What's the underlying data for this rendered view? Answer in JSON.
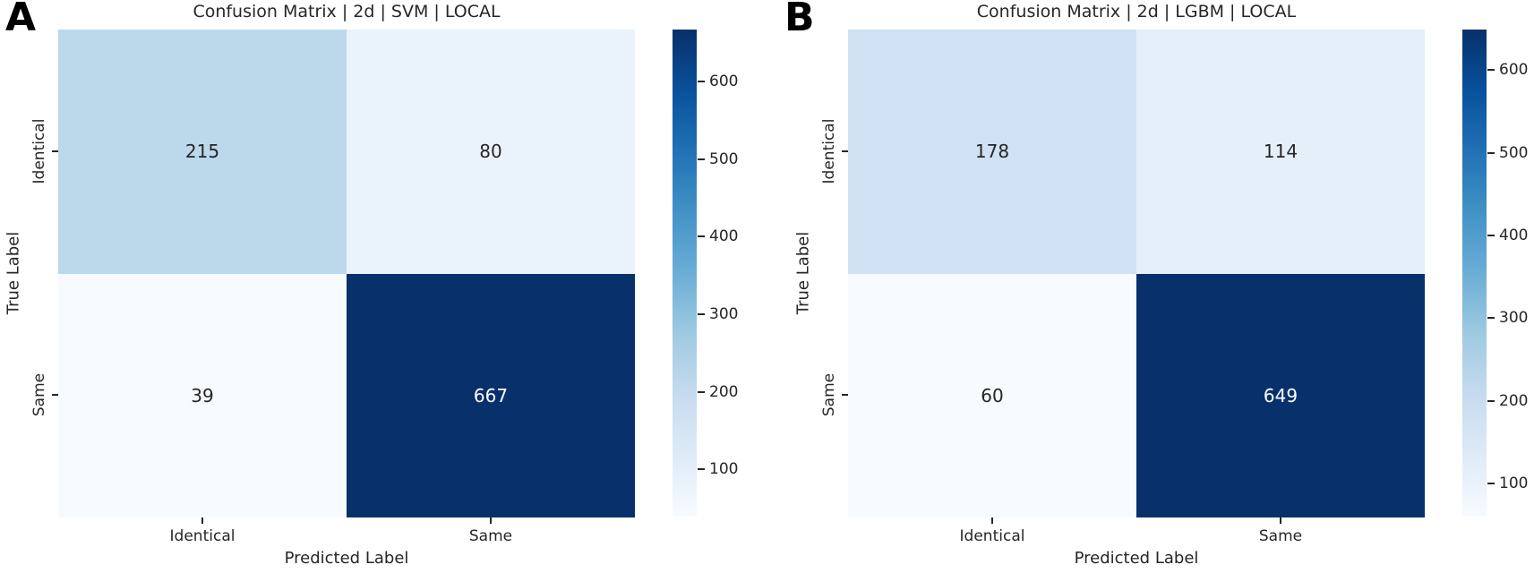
{
  "figure": {
    "background": "#ffffff",
    "text_color": "#262626"
  },
  "colormap": {
    "name": "Blues",
    "stops": [
      "#08306b",
      "#08519c",
      "#2171b5",
      "#4292c6",
      "#6baed6",
      "#9ecae1",
      "#c6dbef",
      "#deebf7",
      "#f7fbff"
    ]
  },
  "panels": [
    {
      "letter": "A",
      "title": "Confusion Matrix | 2d | SVM | LOCAL",
      "xlabel": "Predicted Label",
      "ylabel": "True Label",
      "x_ticks": [
        "Identical",
        "Same"
      ],
      "y_ticks": [
        "Identical",
        "Same"
      ],
      "cells": [
        {
          "value": 215,
          "bg": "#bcd9ec",
          "fg": "#262626"
        },
        {
          "value": 80,
          "bg": "#eaf3fb",
          "fg": "#262626"
        },
        {
          "value": 39,
          "bg": "#f7fbff",
          "fg": "#262626"
        },
        {
          "value": 667,
          "bg": "#08306b",
          "fg": "#ffffff"
        }
      ],
      "colorbar": {
        "vmin": 39,
        "vmax": 667,
        "ticks": [
          600,
          500,
          400,
          300,
          200,
          100
        ]
      }
    },
    {
      "letter": "B",
      "title": "Confusion Matrix | 2d | LGBM | LOCAL",
      "xlabel": "Predicted Label",
      "ylabel": "True Label",
      "x_ticks": [
        "Identical",
        "Same"
      ],
      "y_ticks": [
        "Identical",
        "Same"
      ],
      "cells": [
        {
          "value": 178,
          "bg": "#cfe1f2",
          "fg": "#262626"
        },
        {
          "value": 114,
          "bg": "#e5eff9",
          "fg": "#262626"
        },
        {
          "value": 60,
          "bg": "#f7fbff",
          "fg": "#262626"
        },
        {
          "value": 649,
          "bg": "#08306b",
          "fg": "#ffffff"
        }
      ],
      "colorbar": {
        "vmin": 60,
        "vmax": 649,
        "ticks": [
          600,
          500,
          400,
          300,
          200,
          100
        ]
      }
    }
  ],
  "chart_data": [
    {
      "type": "heatmap",
      "title": "Confusion Matrix | 2d | SVM | LOCAL",
      "xlabel": "Predicted Label",
      "ylabel": "True Label",
      "x_categories": [
        "Identical",
        "Same"
      ],
      "y_categories": [
        "Identical",
        "Same"
      ],
      "values": [
        [
          215,
          80
        ],
        [
          39,
          667
        ]
      ],
      "annotated": true,
      "colormap": "Blues",
      "color_range": [
        39,
        667
      ],
      "colorbar_ticks": [
        100,
        200,
        300,
        400,
        500,
        600
      ],
      "legend_position": "right-colorbar",
      "grid": false
    },
    {
      "type": "heatmap",
      "title": "Confusion Matrix | 2d | LGBM | LOCAL",
      "xlabel": "Predicted Label",
      "ylabel": "True Label",
      "x_categories": [
        "Identical",
        "Same"
      ],
      "y_categories": [
        "Identical",
        "Same"
      ],
      "values": [
        [
          178,
          114
        ],
        [
          60,
          649
        ]
      ],
      "annotated": true,
      "colormap": "Blues",
      "color_range": [
        60,
        649
      ],
      "colorbar_ticks": [
        100,
        200,
        300,
        400,
        500,
        600
      ],
      "legend_position": "right-colorbar",
      "grid": false
    }
  ]
}
